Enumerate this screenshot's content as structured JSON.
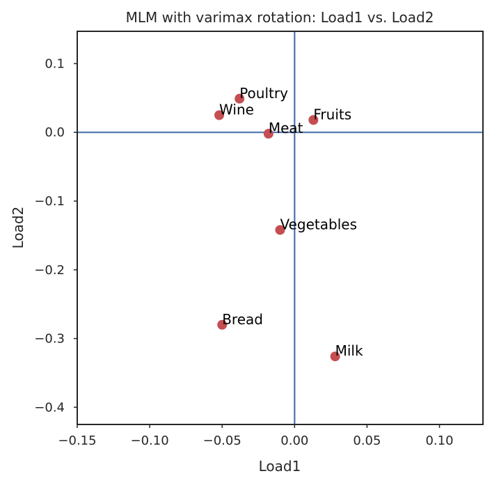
{
  "chart_data": {
    "type": "scatter",
    "title": "MLM with varimax rotation: Load1 vs. Load2",
    "xlabel": "Load1",
    "ylabel": "Load2",
    "xlim": [
      -0.15,
      0.13
    ],
    "ylim": [
      -0.425,
      0.147
    ],
    "xticks": [
      -0.15,
      -0.1,
      -0.05,
      0.0,
      0.05,
      0.1
    ],
    "xtick_labels": [
      "−0.15",
      "−0.10",
      "−0.05",
      "0.00",
      "0.05",
      "0.10"
    ],
    "yticks": [
      0.1,
      0.0,
      -0.1,
      -0.2,
      -0.3,
      -0.4
    ],
    "ytick_labels": [
      "0.1",
      "0.0",
      "−0.1",
      "−0.2",
      "−0.3",
      "−0.4"
    ],
    "grid": false,
    "reference_lines": {
      "x": 0.0,
      "y": 0.0,
      "color": "#4c72b0"
    },
    "point_color": "#c44e52",
    "points": [
      {
        "label": "Poultry",
        "x": -0.038,
        "y": 0.049
      },
      {
        "label": "Wine",
        "x": -0.052,
        "y": 0.025
      },
      {
        "label": "Fruits",
        "x": 0.013,
        "y": 0.018
      },
      {
        "label": "Meat",
        "x": -0.018,
        "y": -0.002
      },
      {
        "label": "Vegetables",
        "x": -0.01,
        "y": -0.142
      },
      {
        "label": "Bread",
        "x": -0.05,
        "y": -0.28
      },
      {
        "label": "Milk",
        "x": 0.028,
        "y": -0.326
      }
    ]
  }
}
